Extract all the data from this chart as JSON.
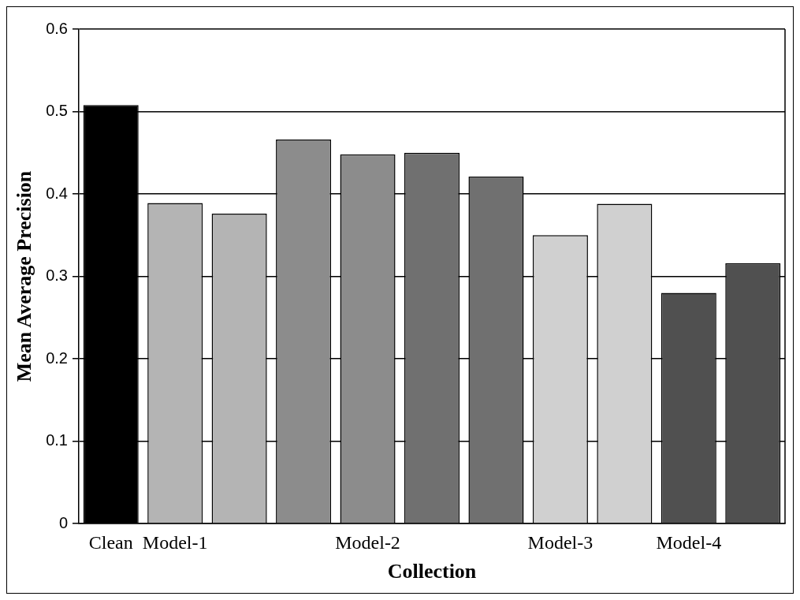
{
  "chart_data": {
    "type": "bar",
    "xlabel": "Collection",
    "ylabel": "Mean Average Precision",
    "categories": [
      "Clean",
      "Model-1",
      null,
      null,
      "Model-2",
      null,
      null,
      "Model-3",
      null,
      "Model-4",
      null
    ],
    "values": [
      0.508,
      0.389,
      0.376,
      0.466,
      0.448,
      0.45,
      0.421,
      0.35,
      0.388,
      0.28,
      0.316
    ],
    "colors": [
      "#000000",
      "#b4b4b4",
      "#b4b4b4",
      "#8c8c8c",
      "#8c8c8c",
      "#707070",
      "#707070",
      "#d0d0d0",
      "#d0d0d0",
      "#505050",
      "#505050"
    ],
    "ylim": [
      0,
      0.6
    ],
    "yticks": [
      0,
      0.1,
      0.2,
      0.3,
      0.4,
      0.5,
      0.6
    ],
    "grid": "y",
    "legend": false
  }
}
